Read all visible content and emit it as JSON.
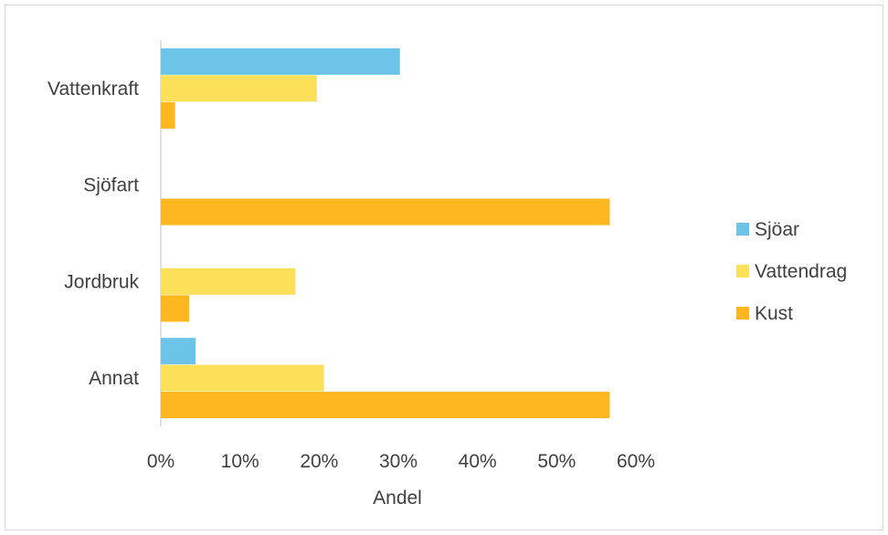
{
  "chart_data": {
    "type": "bar",
    "orientation": "horizontal",
    "categories": [
      "Vattenkraft",
      "Sjöfart",
      "Jordbruk",
      "Annat"
    ],
    "series": [
      {
        "name": "Sjöar",
        "values": [
          30.2,
          null,
          null,
          4.4
        ],
        "color": "#6cc5e8"
      },
      {
        "name": "Vattendrag",
        "values": [
          19.7,
          null,
          17.0,
          20.6
        ],
        "color": "#fde05a"
      },
      {
        "name": "Kust",
        "values": [
          1.8,
          56.7,
          3.6,
          56.7
        ],
        "color": "#ffb71f"
      }
    ],
    "xlim": [
      0,
      60
    ],
    "xticks": [
      "0%",
      "10%",
      "20%",
      "30%",
      "40%",
      "50%",
      "60%"
    ],
    "xlabel": "Andel",
    "ylabel": "",
    "title": "",
    "grid": false,
    "legend_position": "right"
  }
}
